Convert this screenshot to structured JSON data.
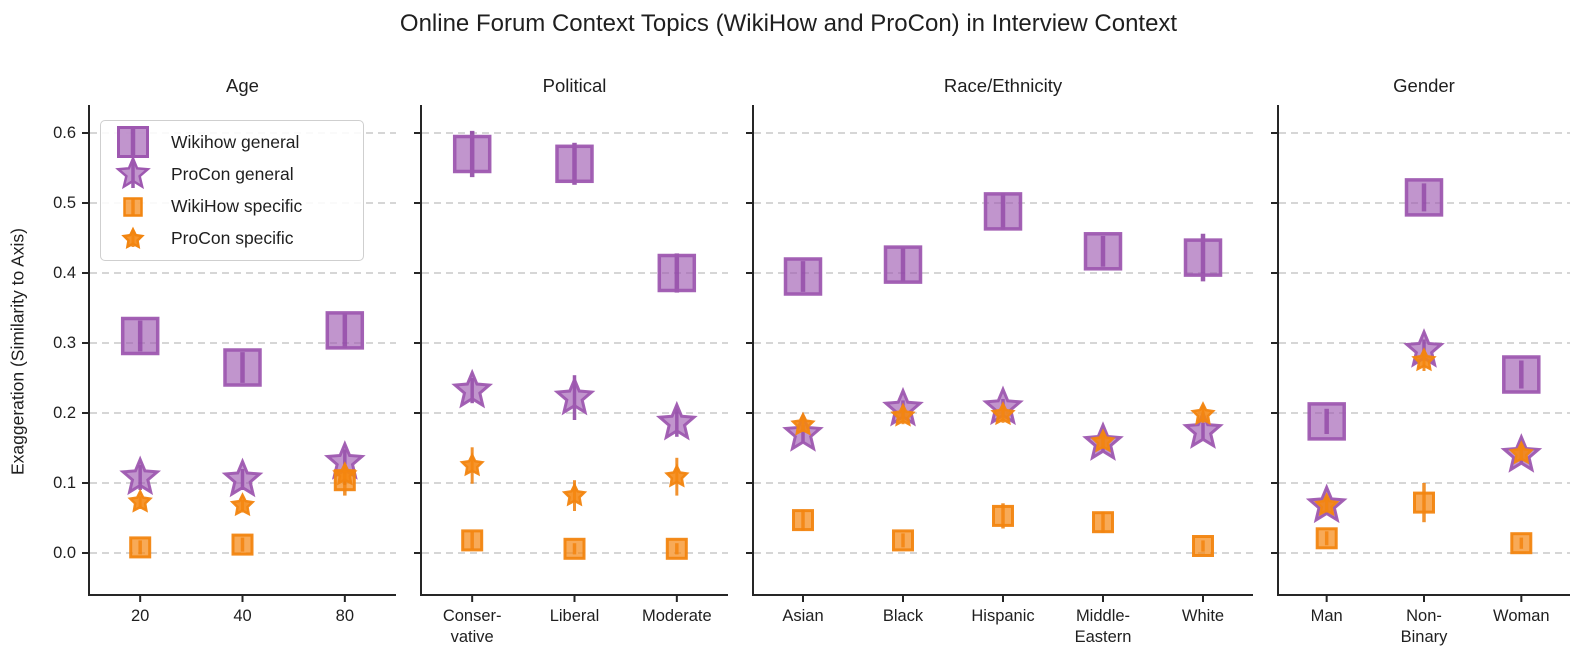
{
  "chart_data": {
    "type": "scatter",
    "title": "Online Forum Context Topics (WikiHow and ProCon) in Interview Context",
    "ylabel": "Exaggeration (Similarity to Axis)",
    "ylim": [
      -0.06,
      0.64
    ],
    "yticks": [
      0.0,
      0.1,
      0.2,
      0.3,
      0.4,
      0.5,
      0.6
    ],
    "ytick_labels": [
      "0.0",
      "0.1",
      "0.2",
      "0.3",
      "0.4",
      "0.5",
      "0.6"
    ],
    "grid": "horizontal dashed",
    "legend_position": "upper left of first panel",
    "colors": {
      "purple_fill": "#9b54ae",
      "purple_edge": "#9e58b0",
      "purple_error": "#8a3fa0",
      "orange_fill": "#f5860f",
      "orange_edge": "#f28510",
      "orange_error": "#ee7f0a",
      "gridline": "#c9c9c9",
      "spine": "#262626",
      "text": "#1f1f1f"
    },
    "legend": [
      {
        "id": "wikihow_general",
        "label": "Wikihow general",
        "marker": "square",
        "size": "large",
        "color_fill": "#9b54ae",
        "color_edge": "#9e58b0",
        "color_error": "#8a3fa0"
      },
      {
        "id": "procon_general",
        "label": "ProCon general",
        "marker": "star",
        "size": "large",
        "color_fill": "#9b54ae",
        "color_edge": "#9e58b0",
        "color_error": "#8a3fa0"
      },
      {
        "id": "wikihow_specific",
        "label": "WikiHow specific",
        "marker": "square",
        "size": "small",
        "color_fill": "#f5860f",
        "color_edge": "#f28510",
        "color_error": "#ee7f0a"
      },
      {
        "id": "procon_specific",
        "label": "ProCon specific",
        "marker": "star",
        "size": "small",
        "color_fill": "#f5860f",
        "color_edge": "#f28510",
        "color_error": "#ee7f0a"
      }
    ],
    "panels": [
      {
        "title": "Age",
        "categories": [
          "20",
          "40",
          "80"
        ],
        "series": [
          {
            "id": "wikihow_general",
            "values": [
              0.31,
              0.265,
              0.318
            ],
            "errors": [
              0.022,
              0.022,
              0.025
            ]
          },
          {
            "id": "procon_general",
            "values": [
              0.108,
              0.105,
              0.13
            ],
            "errors": [
              0.018,
              0.015,
              0.018
            ]
          },
          {
            "id": "wikihow_specific",
            "values": [
              0.008,
              0.012,
              0.104
            ],
            "errors": [
              0.01,
              0.01,
              0.022
            ]
          },
          {
            "id": "procon_specific",
            "values": [
              0.073,
              0.068,
              0.112
            ],
            "errors": [
              0.008,
              0.008,
              0.015
            ]
          }
        ]
      },
      {
        "title": "Political",
        "categories": [
          "Conser-\nvative",
          "Liberal",
          "Moderate"
        ],
        "series": [
          {
            "id": "wikihow_general",
            "values": [
              0.57,
              0.556,
              0.4
            ],
            "errors": [
              0.033,
              0.03,
              0.028
            ]
          },
          {
            "id": "procon_general",
            "values": [
              0.232,
              0.222,
              0.186
            ],
            "errors": [
              0.018,
              0.032,
              0.02
            ]
          },
          {
            "id": "wikihow_specific",
            "values": [
              0.018,
              0.006,
              0.006
            ],
            "errors": [
              0.012,
              0.008,
              0.008
            ]
          },
          {
            "id": "procon_specific",
            "values": [
              0.125,
              0.082,
              0.109
            ],
            "errors": [
              0.026,
              0.022,
              0.027
            ]
          }
        ]
      },
      {
        "title": "Race/Ethnicity",
        "categories": [
          "Asian",
          "Black",
          "Hispanic",
          "Middle-\nEastern",
          "White"
        ],
        "series": [
          {
            "id": "wikihow_general",
            "values": [
              0.395,
              0.412,
              0.488,
              0.431,
              0.422
            ],
            "errors": [
              0.022,
              0.024,
              0.026,
              0.022,
              0.034
            ]
          },
          {
            "id": "procon_general",
            "values": [
              0.17,
              0.206,
              0.208,
              0.157,
              0.174
            ],
            "errors": [
              0.013,
              0.012,
              0.012,
              0.012,
              0.012
            ]
          },
          {
            "id": "wikihow_specific",
            "values": [
              0.047,
              0.018,
              0.053,
              0.044,
              0.01
            ],
            "errors": [
              0.015,
              0.01,
              0.018,
              0.015,
              0.008
            ]
          },
          {
            "id": "procon_specific",
            "values": [
              0.183,
              0.196,
              0.198,
              0.159,
              0.198
            ],
            "errors": [
              0.01,
              0.012,
              0.012,
              0.01,
              0.012
            ]
          }
        ]
      },
      {
        "title": "Gender",
        "categories": [
          "Man",
          "Non-\nBinary",
          "Woman"
        ],
        "series": [
          {
            "id": "wikihow_general",
            "values": [
              0.188,
              0.508,
              0.255
            ],
            "errors": [
              0.018,
              0.02,
              0.02
            ]
          },
          {
            "id": "procon_general",
            "values": [
              0.068,
              0.29,
              0.14
            ],
            "errors": [
              0.012,
              0.015,
              0.012
            ]
          },
          {
            "id": "wikihow_specific",
            "values": [
              0.021,
              0.072,
              0.014
            ],
            "errors": [
              0.01,
              0.028,
              0.008
            ]
          },
          {
            "id": "procon_specific",
            "values": [
              0.068,
              0.275,
              0.142
            ],
            "errors": [
              0.01,
              0.015,
              0.01
            ]
          }
        ]
      }
    ]
  }
}
